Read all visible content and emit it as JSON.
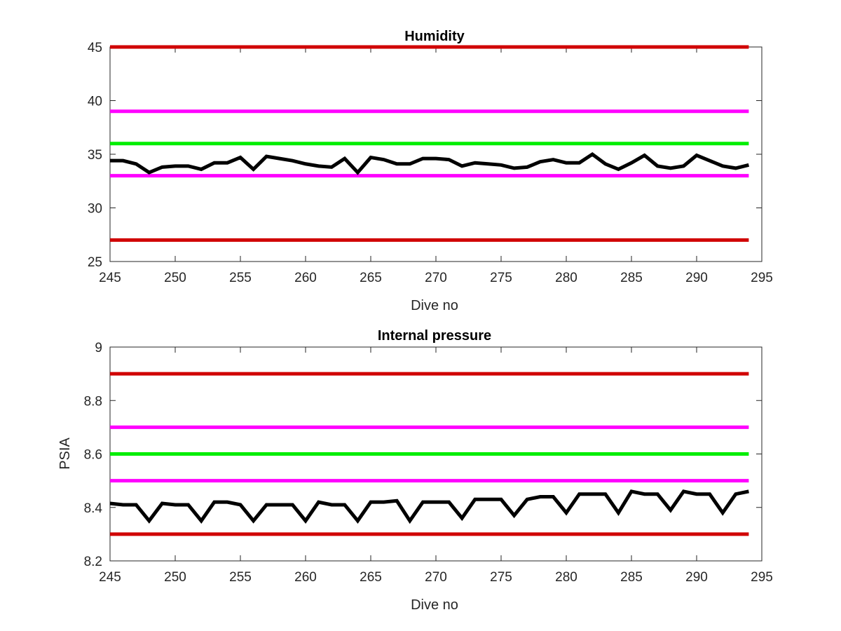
{
  "chart_data": [
    {
      "type": "line",
      "title": "Humidity",
      "xlabel": "Dive no",
      "ylabel": "",
      "xlim": [
        245,
        295
      ],
      "ylim": [
        25,
        45
      ],
      "xticks": [
        245,
        250,
        255,
        260,
        265,
        270,
        275,
        280,
        285,
        290,
        295
      ],
      "yticks": [
        25,
        30,
        35,
        40,
        45
      ],
      "xtick_labels": [
        "245",
        "250",
        "255",
        "260",
        "265",
        "270",
        "275",
        "280",
        "285",
        "290",
        "295"
      ],
      "ytick_labels": [
        "25",
        "30",
        "35",
        "40",
        "45"
      ],
      "grid": false,
      "legend": "none",
      "thresholds": [
        {
          "y": 45,
          "x": [
            245,
            294
          ],
          "color": "#d00000"
        },
        {
          "y": 39,
          "x": [
            245,
            294
          ],
          "color": "#ff00ff"
        },
        {
          "y": 36,
          "x": [
            245,
            294
          ],
          "color": "#00ee00"
        },
        {
          "y": 33,
          "x": [
            245,
            294
          ],
          "color": "#ff00ff"
        },
        {
          "y": 27,
          "x": [
            245,
            294
          ],
          "color": "#d00000"
        }
      ],
      "series": [
        {
          "color": "#000000",
          "x": [
            245,
            246,
            247,
            248,
            249,
            250,
            251,
            252,
            253,
            254,
            255,
            256,
            257,
            258,
            259,
            260,
            261,
            262,
            263,
            264,
            265,
            266,
            267,
            268,
            269,
            270,
            271,
            272,
            273,
            274,
            275,
            276,
            277,
            278,
            279,
            280,
            281,
            282,
            283,
            284,
            285,
            286,
            287,
            288,
            289,
            290,
            291,
            292,
            293,
            294
          ],
          "y": [
            34.4,
            34.4,
            34.1,
            33.3,
            33.8,
            33.9,
            33.9,
            33.6,
            34.2,
            34.2,
            34.7,
            33.6,
            34.8,
            34.6,
            34.4,
            34.1,
            33.9,
            33.8,
            34.6,
            33.3,
            34.7,
            34.5,
            34.1,
            34.1,
            34.6,
            34.6,
            34.5,
            33.9,
            34.2,
            34.1,
            34.0,
            33.7,
            33.8,
            34.3,
            34.5,
            34.2,
            34.2,
            35.0,
            34.1,
            33.6,
            34.2,
            34.9,
            33.9,
            33.7,
            33.9,
            34.9,
            34.4,
            33.9,
            33.7,
            34.0
          ]
        }
      ]
    },
    {
      "type": "line",
      "title": "Internal pressure",
      "xlabel": "Dive no",
      "ylabel": "PSIA",
      "xlim": [
        245,
        295
      ],
      "ylim": [
        8.2,
        9
      ],
      "xticks": [
        245,
        250,
        255,
        260,
        265,
        270,
        275,
        280,
        285,
        290,
        295
      ],
      "yticks": [
        8.2,
        8.4,
        8.6,
        8.8,
        9
      ],
      "xtick_labels": [
        "245",
        "250",
        "255",
        "260",
        "265",
        "270",
        "275",
        "280",
        "285",
        "290",
        "295"
      ],
      "ytick_labels": [
        "8.2",
        "8.4",
        "8.6",
        "8.8",
        "9"
      ],
      "grid": false,
      "legend": "none",
      "thresholds": [
        {
          "y": 8.9,
          "x": [
            245,
            294
          ],
          "color": "#d00000"
        },
        {
          "y": 8.7,
          "x": [
            245,
            294
          ],
          "color": "#ff00ff"
        },
        {
          "y": 8.6,
          "x": [
            245,
            294
          ],
          "color": "#00ee00"
        },
        {
          "y": 8.5,
          "x": [
            245,
            294
          ],
          "color": "#ff00ff"
        },
        {
          "y": 8.3,
          "x": [
            245,
            294
          ],
          "color": "#d00000"
        }
      ],
      "series": [
        {
          "color": "#000000",
          "x": [
            245,
            246,
            247,
            248,
            249,
            250,
            251,
            252,
            253,
            254,
            255,
            256,
            257,
            258,
            259,
            260,
            261,
            262,
            263,
            264,
            265,
            266,
            267,
            268,
            269,
            270,
            271,
            272,
            273,
            274,
            275,
            276,
            277,
            278,
            279,
            280,
            281,
            282,
            283,
            284,
            285,
            286,
            287,
            288,
            289,
            290,
            291,
            292,
            293,
            294
          ],
          "y": [
            8.415,
            8.41,
            8.41,
            8.35,
            8.415,
            8.41,
            8.41,
            8.35,
            8.42,
            8.42,
            8.41,
            8.35,
            8.41,
            8.41,
            8.41,
            8.35,
            8.42,
            8.41,
            8.41,
            8.35,
            8.42,
            8.42,
            8.425,
            8.35,
            8.42,
            8.42,
            8.42,
            8.36,
            8.43,
            8.43,
            8.43,
            8.37,
            8.43,
            8.44,
            8.44,
            8.38,
            8.45,
            8.45,
            8.45,
            8.38,
            8.46,
            8.45,
            8.45,
            8.39,
            8.46,
            8.45,
            8.45,
            8.38,
            8.45,
            8.46
          ]
        }
      ]
    }
  ]
}
